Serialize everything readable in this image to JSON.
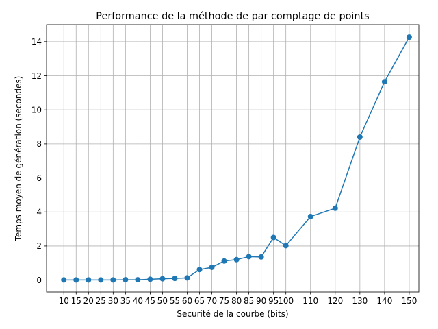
{
  "chart_data": {
    "type": "line",
    "title": "Performance de la méthode de par comptage de points",
    "xlabel": "Securité de la courbe (bits)",
    "ylabel": "Temps moyen de génération (secondes)",
    "x": [
      10,
      15,
      20,
      25,
      30,
      35,
      40,
      45,
      50,
      55,
      60,
      65,
      70,
      75,
      80,
      85,
      90,
      95,
      100,
      110,
      120,
      130,
      140,
      150
    ],
    "x_tick_labels": [
      "10",
      "15",
      "20",
      "25",
      "30",
      "35",
      "40",
      "45",
      "50",
      "55",
      "60",
      "65",
      "70",
      "75",
      "80",
      "85",
      "90",
      "95",
      "100",
      "110",
      "120",
      "130",
      "140",
      "150"
    ],
    "y_ticks": [
      0,
      2,
      4,
      6,
      8,
      10,
      12,
      14
    ],
    "y_tick_labels": [
      "0",
      "2",
      "4",
      "6",
      "8",
      "10",
      "12",
      "14"
    ],
    "series": [
      {
        "values": [
          0.01,
          0.01,
          0.01,
          0.01,
          0.01,
          0.02,
          0.02,
          0.05,
          0.08,
          0.1,
          0.13,
          0.62,
          0.75,
          1.12,
          1.2,
          1.38,
          1.36,
          2.5,
          2.02,
          3.73,
          4.22,
          8.4,
          11.65,
          14.27
        ],
        "color": "#1f77b4"
      }
    ],
    "xlim": [
      3,
      153.9
    ],
    "ylim": [
      -0.7,
      15
    ],
    "grid": true,
    "legend": "none"
  }
}
